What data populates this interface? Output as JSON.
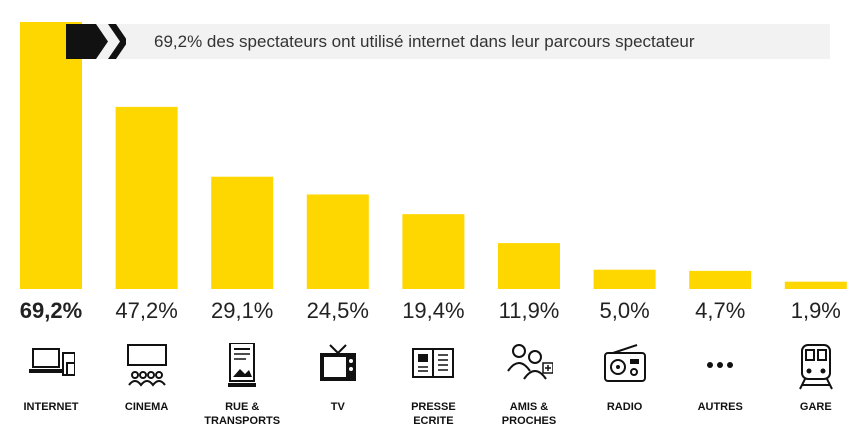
{
  "chart_data": {
    "type": "bar",
    "title": "69,2% des spectateurs ont utilisé internet dans leur parcours spectateur",
    "categories": [
      "INTERNET",
      "CINEMA",
      "RUE &\nTRANSPORTS",
      "TV",
      "PRESSE\nECRITE",
      "AMIS &\nPROCHES",
      "RADIO",
      "AUTRES",
      "GARE"
    ],
    "values": [
      69.2,
      47.2,
      29.1,
      24.5,
      19.4,
      11.9,
      5.0,
      4.7,
      1.9
    ],
    "value_labels": [
      "69,2%",
      "47,2%",
      "29,1%",
      "24,5%",
      "19,4%",
      "11,9%",
      "5,0%",
      "4,7%",
      "1,9%"
    ],
    "ylim": [
      0,
      69.2
    ],
    "grid": false,
    "bar_color": "#ffd700",
    "icons": [
      "devices-icon",
      "cinema-screen-icon",
      "billboard-icon",
      "tv-icon",
      "newspaper-icon",
      "people-icon",
      "radio-icon",
      "dots-icon",
      "train-icon"
    ]
  }
}
